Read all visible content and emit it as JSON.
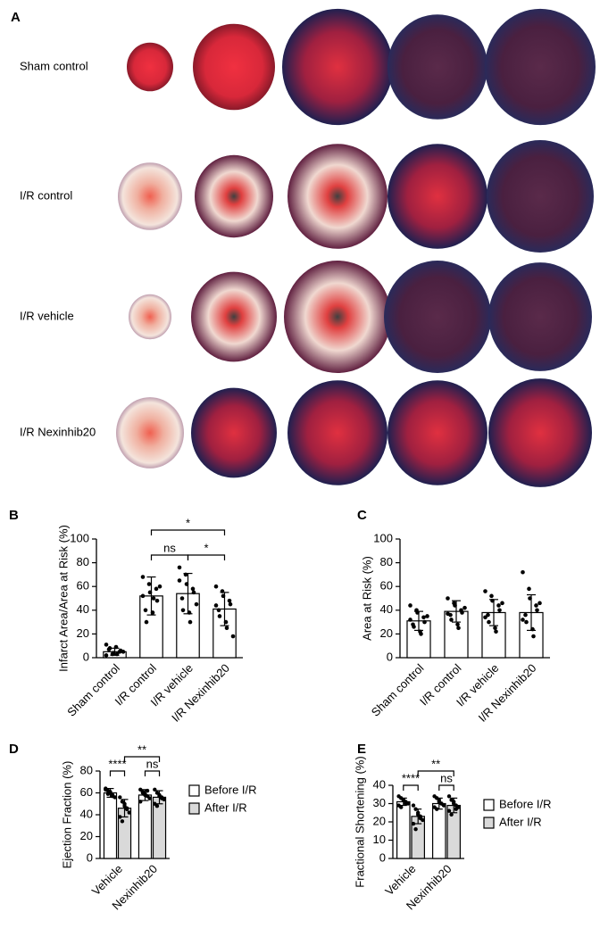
{
  "panel_a": {
    "label": "A",
    "rows": [
      "Sham control",
      "I/R control",
      "I/R vehicle",
      "I/R Nexinhib20"
    ]
  },
  "chart_data": [
    {
      "type": "bar",
      "label": "B",
      "ylabel": "Infarct Area/Area at Risk (%)",
      "categories": [
        "Sham control",
        "I/R control",
        "I/R vehicle",
        "I/R Nexinhib20"
      ],
      "values": [
        5,
        52,
        54,
        41
      ],
      "errors": [
        3,
        16,
        17,
        14
      ],
      "points": [
        [
          2,
          3,
          4,
          5,
          6,
          7,
          8,
          9,
          3,
          5,
          11
        ],
        [
          68,
          62,
          55,
          58,
          48,
          40,
          30,
          38,
          50,
          60,
          52
        ],
        [
          76,
          70,
          62,
          58,
          55,
          50,
          40,
          38,
          30,
          45,
          65
        ],
        [
          60,
          56,
          52,
          48,
          45,
          40,
          35,
          30,
          25,
          18,
          44
        ]
      ],
      "color": "#ffffff",
      "ylim": [
        0,
        100
      ],
      "yticks": [
        0,
        20,
        40,
        60,
        80,
        100
      ],
      "annotations": [
        "*",
        "ns",
        "*"
      ]
    },
    {
      "type": "bar",
      "label": "C",
      "ylabel": "Area at Risk (%)",
      "categories": [
        "Sham control",
        "I/R control",
        "I/R vehicle",
        "I/R Nexinhib20"
      ],
      "values": [
        31,
        39,
        38,
        38
      ],
      "errors": [
        8,
        9,
        11,
        15
      ],
      "points": [
        [
          44,
          40,
          38,
          34,
          30,
          28,
          26,
          22,
          20,
          35,
          32
        ],
        [
          50,
          46,
          44,
          40,
          38,
          36,
          32,
          28,
          25,
          42,
          37
        ],
        [
          56,
          52,
          48,
          44,
          40,
          36,
          30,
          25,
          22,
          46,
          34
        ],
        [
          72,
          58,
          50,
          44,
          40,
          36,
          30,
          24,
          18,
          46,
          32
        ]
      ],
      "color": "#ffffff",
      "ylim": [
        0,
        100
      ],
      "yticks": [
        0,
        20,
        40,
        60,
        80,
        100
      ]
    },
    {
      "type": "grouped_bar",
      "label": "D",
      "ylabel": "Ejection Fraction (%)",
      "categories": [
        "Vehicle",
        "Nexinhib20"
      ],
      "series": [
        {
          "name": "Before I/R",
          "color": "#ffffff",
          "values": [
            60,
            58
          ],
          "errors": [
            4,
            5
          ],
          "points": [
            [
              64,
              62,
              60,
              58,
              56,
              63,
              59,
              61,
              57
            ],
            [
              63,
              61,
              59,
              57,
              55,
              52,
              60,
              58,
              62
            ]
          ]
        },
        {
          "name": "After I/R",
          "color": "#d9d9d9",
          "values": [
            46,
            56
          ],
          "errors": [
            8,
            6
          ],
          "points": [
            [
              56,
              52,
              48,
              45,
              42,
              38,
              34,
              50,
              46
            ],
            [
              63,
              60,
              58,
              56,
              54,
              50,
              48,
              57,
              55
            ]
          ]
        }
      ],
      "ylim": [
        0,
        80
      ],
      "yticks": [
        0,
        20,
        40,
        60,
        80
      ],
      "annotations": [
        "****",
        "ns",
        "**"
      ]
    },
    {
      "type": "grouped_bar",
      "label": "E",
      "ylabel": "Fractional Shortening (%)",
      "categories": [
        "Vehicle",
        "Nexinhib20"
      ],
      "series": [
        {
          "name": "Before I/R",
          "color": "#ffffff",
          "values": [
            31,
            30
          ],
          "errors": [
            2,
            3
          ],
          "points": [
            [
              34,
              33,
              32,
              31,
              30,
              29,
              28,
              32,
              30
            ],
            [
              34,
              33,
              31,
              30,
              29,
              28,
              27,
              32,
              30
            ]
          ]
        },
        {
          "name": "After I/R",
          "color": "#d9d9d9",
          "values": [
            23,
            29
          ],
          "errors": [
            4,
            4
          ],
          "points": [
            [
              29,
              27,
              25,
              23,
              21,
              19,
              16,
              24,
              22
            ],
            [
              34,
              32,
              30,
              29,
              28,
              26,
              24,
              31,
              27
            ]
          ]
        }
      ],
      "ylim": [
        0,
        40
      ],
      "yticks": [
        0,
        10,
        20,
        30,
        40
      ],
      "annotations": [
        "****",
        "ns",
        "**"
      ]
    }
  ]
}
